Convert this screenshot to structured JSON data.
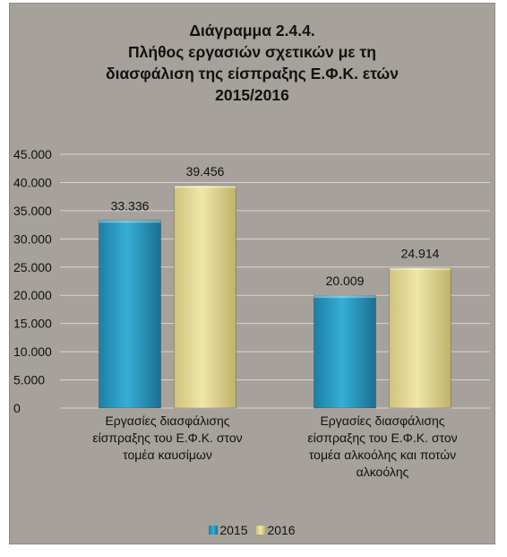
{
  "chart_data": {
    "type": "bar",
    "title_lines": [
      "Διάγραμμα 2.4.4.",
      "Πλήθος εργασιών σχετικών με τη",
      "διασφάλιση της είσπραξης Ε.Φ.Κ. ετών",
      "2015/2016"
    ],
    "categories": [
      [
        "Εργασίες διασφάλισης",
        "είσπραξης του Ε.Φ.Κ. στον",
        "τομέα καυσίμων"
      ],
      [
        "Εργασίες διασφάλισης",
        "είσπραξης του Ε.Φ.Κ. στον",
        "τομέα αλκοόλης και ποτών",
        "αλκοόλης"
      ]
    ],
    "series": [
      {
        "name": "2015",
        "values": [
          33336,
          20009
        ],
        "labels": [
          "33.336",
          "20.009"
        ],
        "color": "#2e9fc6"
      },
      {
        "name": "2016",
        "values": [
          39456,
          24914
        ],
        "labels": [
          "39.456",
          "24.914"
        ],
        "color": "#ddd392"
      }
    ],
    "ylim": [
      0,
      45000
    ],
    "yticks": [
      0,
      5000,
      10000,
      15000,
      20000,
      25000,
      30000,
      35000,
      40000,
      45000
    ],
    "ytick_labels": [
      "0",
      "5.000",
      "10.000",
      "15.000",
      "20.000",
      "25.000",
      "30.000",
      "35.000",
      "40.000",
      "45.000"
    ],
    "grid": true,
    "legend_position": "bottom",
    "background": "#a6a19b"
  }
}
